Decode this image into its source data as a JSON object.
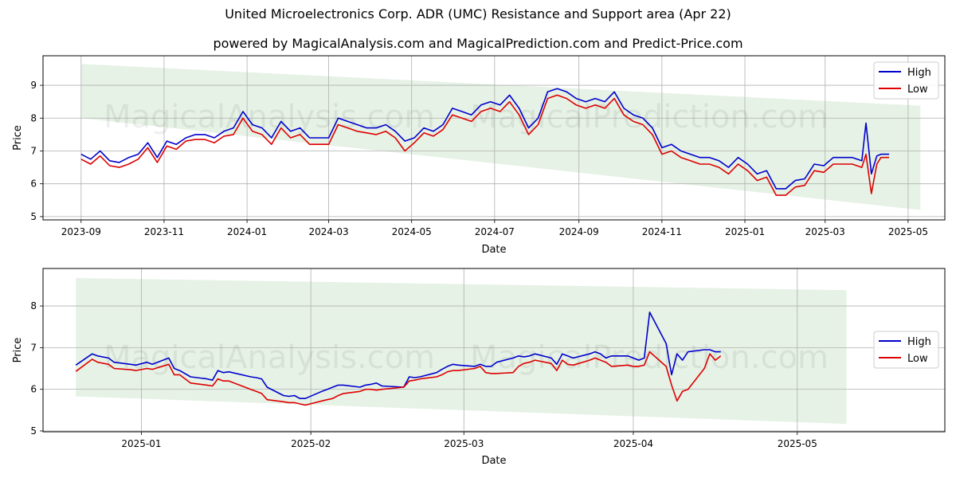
{
  "title": "United Microelectronics Corp. ADR (UMC) Resistance and Support area (Apr 22)",
  "subtitle": "powered by MagicalAnalysis.com and MagicalPrediction.com and Predict-Price.com",
  "watermarks": [
    "MagicalAnalysis.com",
    "MagicalPrediction.com"
  ],
  "colors": {
    "high": "#0000cc",
    "low": "#dd0000",
    "band": "#e6f2e6",
    "grid": "#b0b0b0"
  },
  "chart_data": [
    {
      "type": "line",
      "xlabel": "Date",
      "ylabel": "Price",
      "grid": true,
      "legend_position": "top-right",
      "ylim": [
        4.9,
        9.9
      ],
      "xlim": [
        "2023-08-04",
        "2025-05-28"
      ],
      "yticks": [
        5,
        6,
        7,
        8,
        9
      ],
      "xticks": [
        {
          "date": "2023-09-01",
          "label": "2023-09"
        },
        {
          "date": "2023-11-01",
          "label": "2023-11"
        },
        {
          "date": "2024-01-01",
          "label": "2024-01"
        },
        {
          "date": "2024-03-01",
          "label": "2024-03"
        },
        {
          "date": "2024-05-01",
          "label": "2024-05"
        },
        {
          "date": "2024-07-01",
          "label": "2024-07"
        },
        {
          "date": "2024-09-01",
          "label": "2024-09"
        },
        {
          "date": "2024-11-01",
          "label": "2024-11"
        },
        {
          "date": "2025-01-01",
          "label": "2025-01"
        },
        {
          "date": "2025-03-01",
          "label": "2025-03"
        },
        {
          "date": "2025-05-01",
          "label": "2025-05"
        }
      ],
      "band": {
        "start": "2023-09-01",
        "end": "2025-05-10",
        "upper": [
          9.65,
          8.38
        ],
        "lower": [
          8.0,
          5.2
        ]
      },
      "series": [
        {
          "name": "High",
          "x": [
            "2023-09-01",
            "2023-09-08",
            "2023-09-15",
            "2023-09-22",
            "2023-09-29",
            "2023-10-06",
            "2023-10-13",
            "2023-10-20",
            "2023-10-27",
            "2023-11-03",
            "2023-11-10",
            "2023-11-17",
            "2023-11-24",
            "2023-12-01",
            "2023-12-08",
            "2023-12-15",
            "2023-12-22",
            "2023-12-29",
            "2024-01-05",
            "2024-01-12",
            "2024-01-19",
            "2024-01-26",
            "2024-02-02",
            "2024-02-09",
            "2024-02-16",
            "2024-02-23",
            "2024-03-01",
            "2024-03-08",
            "2024-03-15",
            "2024-03-22",
            "2024-03-29",
            "2024-04-05",
            "2024-04-12",
            "2024-04-19",
            "2024-04-26",
            "2024-05-03",
            "2024-05-10",
            "2024-05-17",
            "2024-05-24",
            "2024-05-31",
            "2024-06-07",
            "2024-06-14",
            "2024-06-21",
            "2024-06-28",
            "2024-07-05",
            "2024-07-12",
            "2024-07-19",
            "2024-07-26",
            "2024-08-02",
            "2024-08-09",
            "2024-08-16",
            "2024-08-23",
            "2024-08-30",
            "2024-09-06",
            "2024-09-13",
            "2024-09-20",
            "2024-09-27",
            "2024-10-04",
            "2024-10-11",
            "2024-10-18",
            "2024-10-25",
            "2024-11-01",
            "2024-11-08",
            "2024-11-15",
            "2024-11-22",
            "2024-11-29",
            "2024-12-06",
            "2024-12-13",
            "2024-12-20",
            "2024-12-27",
            "2025-01-03",
            "2025-01-10",
            "2025-01-17",
            "2025-01-24",
            "2025-01-31",
            "2025-02-07",
            "2025-02-14",
            "2025-02-21",
            "2025-02-28",
            "2025-03-07",
            "2025-03-14",
            "2025-03-21",
            "2025-03-28",
            "2025-03-31",
            "2025-04-04",
            "2025-04-08",
            "2025-04-11",
            "2025-04-17"
          ],
          "values": [
            6.9,
            6.75,
            7.0,
            6.7,
            6.65,
            6.8,
            6.9,
            7.25,
            6.8,
            7.3,
            7.2,
            7.4,
            7.5,
            7.5,
            7.4,
            7.6,
            7.7,
            8.2,
            7.8,
            7.7,
            7.4,
            7.9,
            7.6,
            7.7,
            7.4,
            7.4,
            7.4,
            8.0,
            7.9,
            7.8,
            7.7,
            7.7,
            7.8,
            7.6,
            7.3,
            7.4,
            7.7,
            7.6,
            7.8,
            8.3,
            8.2,
            8.1,
            8.4,
            8.5,
            8.4,
            8.7,
            8.3,
            7.7,
            8.0,
            8.8,
            8.9,
            8.8,
            8.6,
            8.5,
            8.6,
            8.5,
            8.8,
            8.3,
            8.1,
            8.0,
            7.7,
            7.1,
            7.2,
            7.0,
            6.9,
            6.8,
            6.8,
            6.7,
            6.5,
            6.8,
            6.6,
            6.3,
            6.4,
            5.85,
            5.85,
            6.1,
            6.15,
            6.6,
            6.55,
            6.8,
            6.8,
            6.8,
            6.7,
            7.85,
            6.3,
            6.85,
            6.9,
            6.9
          ]
        },
        {
          "name": "Low",
          "x": [
            "2023-09-01",
            "2023-09-08",
            "2023-09-15",
            "2023-09-22",
            "2023-09-29",
            "2023-10-06",
            "2023-10-13",
            "2023-10-20",
            "2023-10-27",
            "2023-11-03",
            "2023-11-10",
            "2023-11-17",
            "2023-11-24",
            "2023-12-01",
            "2023-12-08",
            "2023-12-15",
            "2023-12-22",
            "2023-12-29",
            "2024-01-05",
            "2024-01-12",
            "2024-01-19",
            "2024-01-26",
            "2024-02-02",
            "2024-02-09",
            "2024-02-16",
            "2024-02-23",
            "2024-03-01",
            "2024-03-08",
            "2024-03-15",
            "2024-03-22",
            "2024-03-29",
            "2024-04-05",
            "2024-04-12",
            "2024-04-19",
            "2024-04-26",
            "2024-05-03",
            "2024-05-10",
            "2024-05-17",
            "2024-05-24",
            "2024-05-31",
            "2024-06-07",
            "2024-06-14",
            "2024-06-21",
            "2024-06-28",
            "2024-07-05",
            "2024-07-12",
            "2024-07-19",
            "2024-07-26",
            "2024-08-02",
            "2024-08-09",
            "2024-08-16",
            "2024-08-23",
            "2024-08-30",
            "2024-09-06",
            "2024-09-13",
            "2024-09-20",
            "2024-09-27",
            "2024-10-04",
            "2024-10-11",
            "2024-10-18",
            "2024-10-25",
            "2024-11-01",
            "2024-11-08",
            "2024-11-15",
            "2024-11-22",
            "2024-11-29",
            "2024-12-06",
            "2024-12-13",
            "2024-12-20",
            "2024-12-27",
            "2025-01-03",
            "2025-01-10",
            "2025-01-17",
            "2025-01-24",
            "2025-01-31",
            "2025-02-07",
            "2025-02-14",
            "2025-02-21",
            "2025-02-28",
            "2025-03-07",
            "2025-03-14",
            "2025-03-21",
            "2025-03-28",
            "2025-03-31",
            "2025-04-04",
            "2025-04-08",
            "2025-04-11",
            "2025-04-17"
          ],
          "values": [
            6.75,
            6.6,
            6.85,
            6.55,
            6.5,
            6.6,
            6.75,
            7.1,
            6.65,
            7.15,
            7.05,
            7.3,
            7.35,
            7.35,
            7.25,
            7.45,
            7.5,
            8.0,
            7.6,
            7.5,
            7.2,
            7.7,
            7.4,
            7.5,
            7.2,
            7.2,
            7.2,
            7.8,
            7.7,
            7.6,
            7.55,
            7.5,
            7.6,
            7.4,
            7.0,
            7.25,
            7.55,
            7.45,
            7.65,
            8.1,
            8.0,
            7.9,
            8.2,
            8.3,
            8.2,
            8.5,
            8.1,
            7.5,
            7.8,
            8.6,
            8.7,
            8.6,
            8.4,
            8.3,
            8.4,
            8.3,
            8.6,
            8.1,
            7.9,
            7.8,
            7.5,
            6.9,
            7.0,
            6.8,
            6.7,
            6.6,
            6.6,
            6.5,
            6.3,
            6.6,
            6.4,
            6.1,
            6.2,
            5.65,
            5.65,
            5.9,
            5.95,
            6.4,
            6.35,
            6.6,
            6.6,
            6.6,
            6.5,
            6.9,
            5.7,
            6.6,
            6.8,
            6.8
          ]
        }
      ]
    },
    {
      "type": "line",
      "xlabel": "Date",
      "ylabel": "Price",
      "grid": true,
      "legend_position": "center-right",
      "ylim": [
        4.98,
        8.9
      ],
      "xlim": [
        "2024-12-14",
        "2025-05-28"
      ],
      "yticks": [
        5,
        6,
        7,
        8
      ],
      "xticks": [
        {
          "date": "2025-01-01",
          "label": "2025-01"
        },
        {
          "date": "2025-02-01",
          "label": "2025-02"
        },
        {
          "date": "2025-03-01",
          "label": "2025-03"
        },
        {
          "date": "2025-04-01",
          "label": "2025-04"
        },
        {
          "date": "2025-05-01",
          "label": "2025-05"
        }
      ],
      "band": {
        "start": "2024-12-20",
        "end": "2025-05-10",
        "upper": [
          8.67,
          8.38
        ],
        "lower": [
          5.83,
          5.17
        ]
      },
      "series": [
        {
          "name": "High",
          "x": [
            "2024-12-20",
            "2024-12-23",
            "2024-12-24",
            "2024-12-26",
            "2024-12-27",
            "2024-12-30",
            "2024-12-31",
            "2025-01-02",
            "2025-01-03",
            "2025-01-06",
            "2025-01-07",
            "2025-01-08",
            "2025-01-10",
            "2025-01-13",
            "2025-01-14",
            "2025-01-15",
            "2025-01-16",
            "2025-01-17",
            "2025-01-21",
            "2025-01-22",
            "2025-01-23",
            "2025-01-24",
            "2025-01-27",
            "2025-01-28",
            "2025-01-29",
            "2025-01-30",
            "2025-01-31",
            "2025-02-03",
            "2025-02-04",
            "2025-02-05",
            "2025-02-06",
            "2025-02-07",
            "2025-02-10",
            "2025-02-11",
            "2025-02-12",
            "2025-02-13",
            "2025-02-14",
            "2025-02-18",
            "2025-02-19",
            "2025-02-20",
            "2025-02-21",
            "2025-02-24",
            "2025-02-25",
            "2025-02-26",
            "2025-02-27",
            "2025-02-28",
            "2025-03-03",
            "2025-03-04",
            "2025-03-05",
            "2025-03-06",
            "2025-03-07",
            "2025-03-10",
            "2025-03-11",
            "2025-03-12",
            "2025-03-13",
            "2025-03-14",
            "2025-03-17",
            "2025-03-18",
            "2025-03-19",
            "2025-03-20",
            "2025-03-21",
            "2025-03-24",
            "2025-03-25",
            "2025-03-26",
            "2025-03-27",
            "2025-03-28",
            "2025-03-31",
            "2025-04-01",
            "2025-04-02",
            "2025-04-03",
            "2025-04-04",
            "2025-04-07",
            "2025-04-08",
            "2025-04-09",
            "2025-04-10",
            "2025-04-11",
            "2025-04-14",
            "2025-04-15",
            "2025-04-16",
            "2025-04-17"
          ],
          "values": [
            6.58,
            6.85,
            6.8,
            6.75,
            6.65,
            6.6,
            6.58,
            6.65,
            6.6,
            6.75,
            6.5,
            6.45,
            6.3,
            6.25,
            6.22,
            6.45,
            6.4,
            6.42,
            6.3,
            6.28,
            6.25,
            6.05,
            5.85,
            5.83,
            5.85,
            5.78,
            5.78,
            5.95,
            6.0,
            6.05,
            6.1,
            6.1,
            6.05,
            6.1,
            6.12,
            6.15,
            6.08,
            6.05,
            6.3,
            6.28,
            6.3,
            6.4,
            6.48,
            6.55,
            6.6,
            6.58,
            6.55,
            6.6,
            6.55,
            6.55,
            6.65,
            6.75,
            6.8,
            6.78,
            6.8,
            6.85,
            6.75,
            6.6,
            6.85,
            6.8,
            6.75,
            6.85,
            6.9,
            6.85,
            6.75,
            6.8,
            6.8,
            6.75,
            6.7,
            6.75,
            7.85,
            7.1,
            6.35,
            6.85,
            6.7,
            6.9,
            6.95,
            6.95,
            6.9,
            6.9
          ]
        },
        {
          "name": "Low",
          "x": [
            "2024-12-20",
            "2024-12-23",
            "2024-12-24",
            "2024-12-26",
            "2024-12-27",
            "2024-12-30",
            "2024-12-31",
            "2025-01-02",
            "2025-01-03",
            "2025-01-06",
            "2025-01-07",
            "2025-01-08",
            "2025-01-10",
            "2025-01-13",
            "2025-01-14",
            "2025-01-15",
            "2025-01-16",
            "2025-01-17",
            "2025-01-21",
            "2025-01-22",
            "2025-01-23",
            "2025-01-24",
            "2025-01-27",
            "2025-01-28",
            "2025-01-29",
            "2025-01-30",
            "2025-01-31",
            "2025-02-03",
            "2025-02-04",
            "2025-02-05",
            "2025-02-06",
            "2025-02-07",
            "2025-02-10",
            "2025-02-11",
            "2025-02-12",
            "2025-02-13",
            "2025-02-14",
            "2025-02-18",
            "2025-02-19",
            "2025-02-20",
            "2025-02-21",
            "2025-02-24",
            "2025-02-25",
            "2025-02-26",
            "2025-02-27",
            "2025-02-28",
            "2025-03-03",
            "2025-03-04",
            "2025-03-05",
            "2025-03-06",
            "2025-03-07",
            "2025-03-10",
            "2025-03-11",
            "2025-03-12",
            "2025-03-13",
            "2025-03-14",
            "2025-03-17",
            "2025-03-18",
            "2025-03-19",
            "2025-03-20",
            "2025-03-21",
            "2025-03-24",
            "2025-03-25",
            "2025-03-26",
            "2025-03-27",
            "2025-03-28",
            "2025-03-31",
            "2025-04-01",
            "2025-04-02",
            "2025-04-03",
            "2025-04-04",
            "2025-04-07",
            "2025-04-08",
            "2025-04-09",
            "2025-04-10",
            "2025-04-11",
            "2025-04-14",
            "2025-04-15",
            "2025-04-16",
            "2025-04-17"
          ],
          "values": [
            6.43,
            6.72,
            6.65,
            6.6,
            6.5,
            6.47,
            6.45,
            6.5,
            6.48,
            6.6,
            6.35,
            6.35,
            6.15,
            6.1,
            6.08,
            6.25,
            6.2,
            6.2,
            6.0,
            5.95,
            5.9,
            5.75,
            5.7,
            5.68,
            5.68,
            5.65,
            5.62,
            5.72,
            5.75,
            5.78,
            5.85,
            5.9,
            5.95,
            6.0,
            6.0,
            5.98,
            6.0,
            6.05,
            6.2,
            6.22,
            6.25,
            6.3,
            6.35,
            6.42,
            6.45,
            6.45,
            6.5,
            6.55,
            6.4,
            6.38,
            6.38,
            6.4,
            6.55,
            6.62,
            6.65,
            6.7,
            6.62,
            6.45,
            6.7,
            6.6,
            6.58,
            6.7,
            6.75,
            6.7,
            6.65,
            6.55,
            6.58,
            6.55,
            6.55,
            6.58,
            6.9,
            6.55,
            6.1,
            5.72,
            5.95,
            6.0,
            6.5,
            6.85,
            6.7,
            6.8
          ]
        }
      ]
    }
  ]
}
